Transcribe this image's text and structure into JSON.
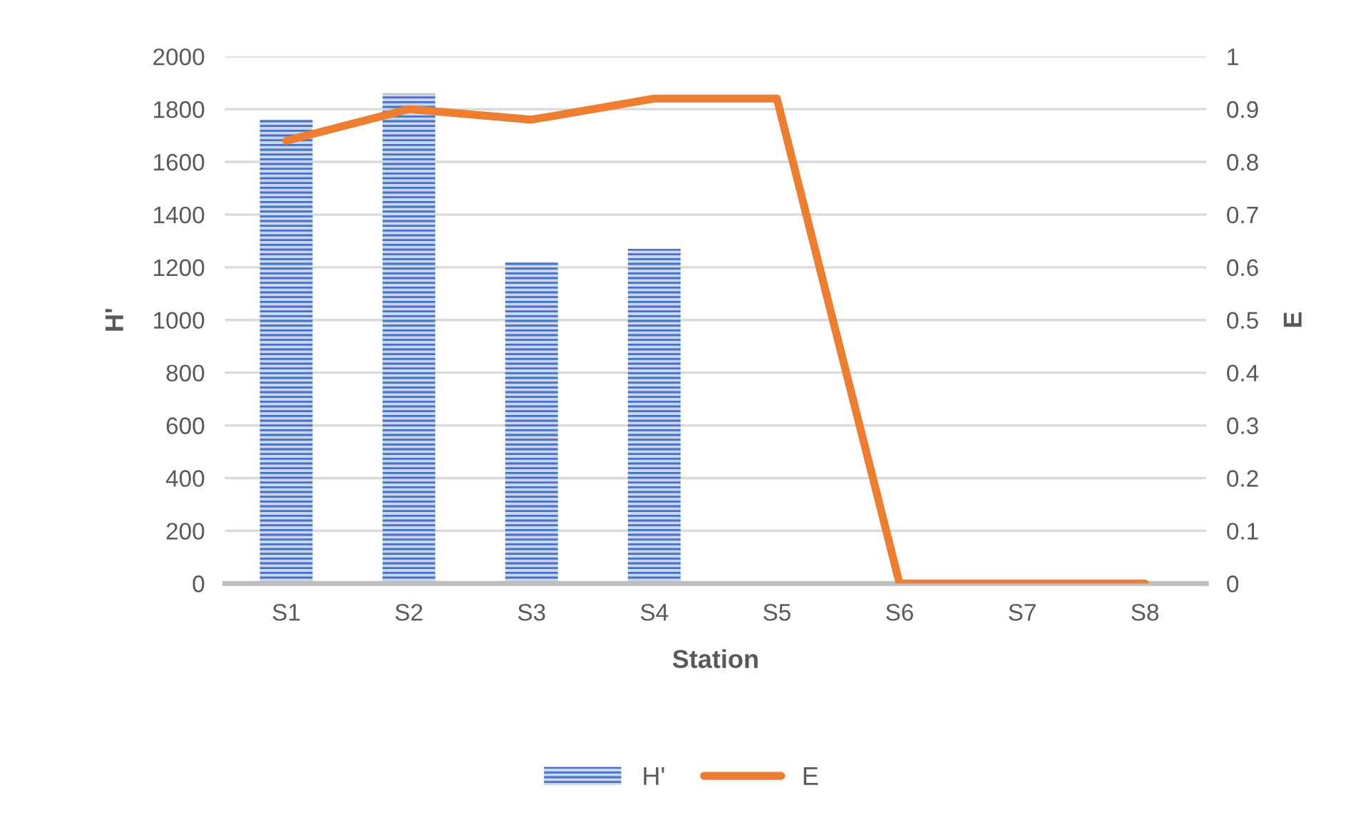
{
  "chart_data": {
    "type": "bar",
    "xlabel": "Station",
    "ylabel": "H'",
    "y2label": "E",
    "categories": [
      "S1",
      "S2",
      "S3",
      "S4",
      "S5",
      "S6",
      "S7",
      "S8"
    ],
    "series": [
      {
        "name": "H'",
        "color": "#4472c4",
        "values": [
          1760,
          1860,
          1220,
          1270,
          0,
          0,
          0,
          0
        ]
      },
      {
        "name": "E",
        "type": "line",
        "axis": "y2",
        "color": "#ed7d31",
        "values": [
          0.84,
          0.9,
          0.88,
          0.92,
          0.92,
          0,
          0,
          0
        ]
      }
    ],
    "ylim": [
      0,
      2000
    ],
    "yticks": [
      0,
      200,
      400,
      600,
      800,
      1000,
      1200,
      1400,
      1600,
      1800,
      2000
    ],
    "y2lim": [
      0,
      1
    ],
    "y2ticks": [
      0,
      0.1,
      0.2,
      0.3,
      0.4,
      0.5,
      0.6,
      0.7,
      0.8,
      0.9,
      1
    ],
    "grid": "y",
    "legend": "bottom",
    "marker": "none",
    "line_style": "solid"
  }
}
